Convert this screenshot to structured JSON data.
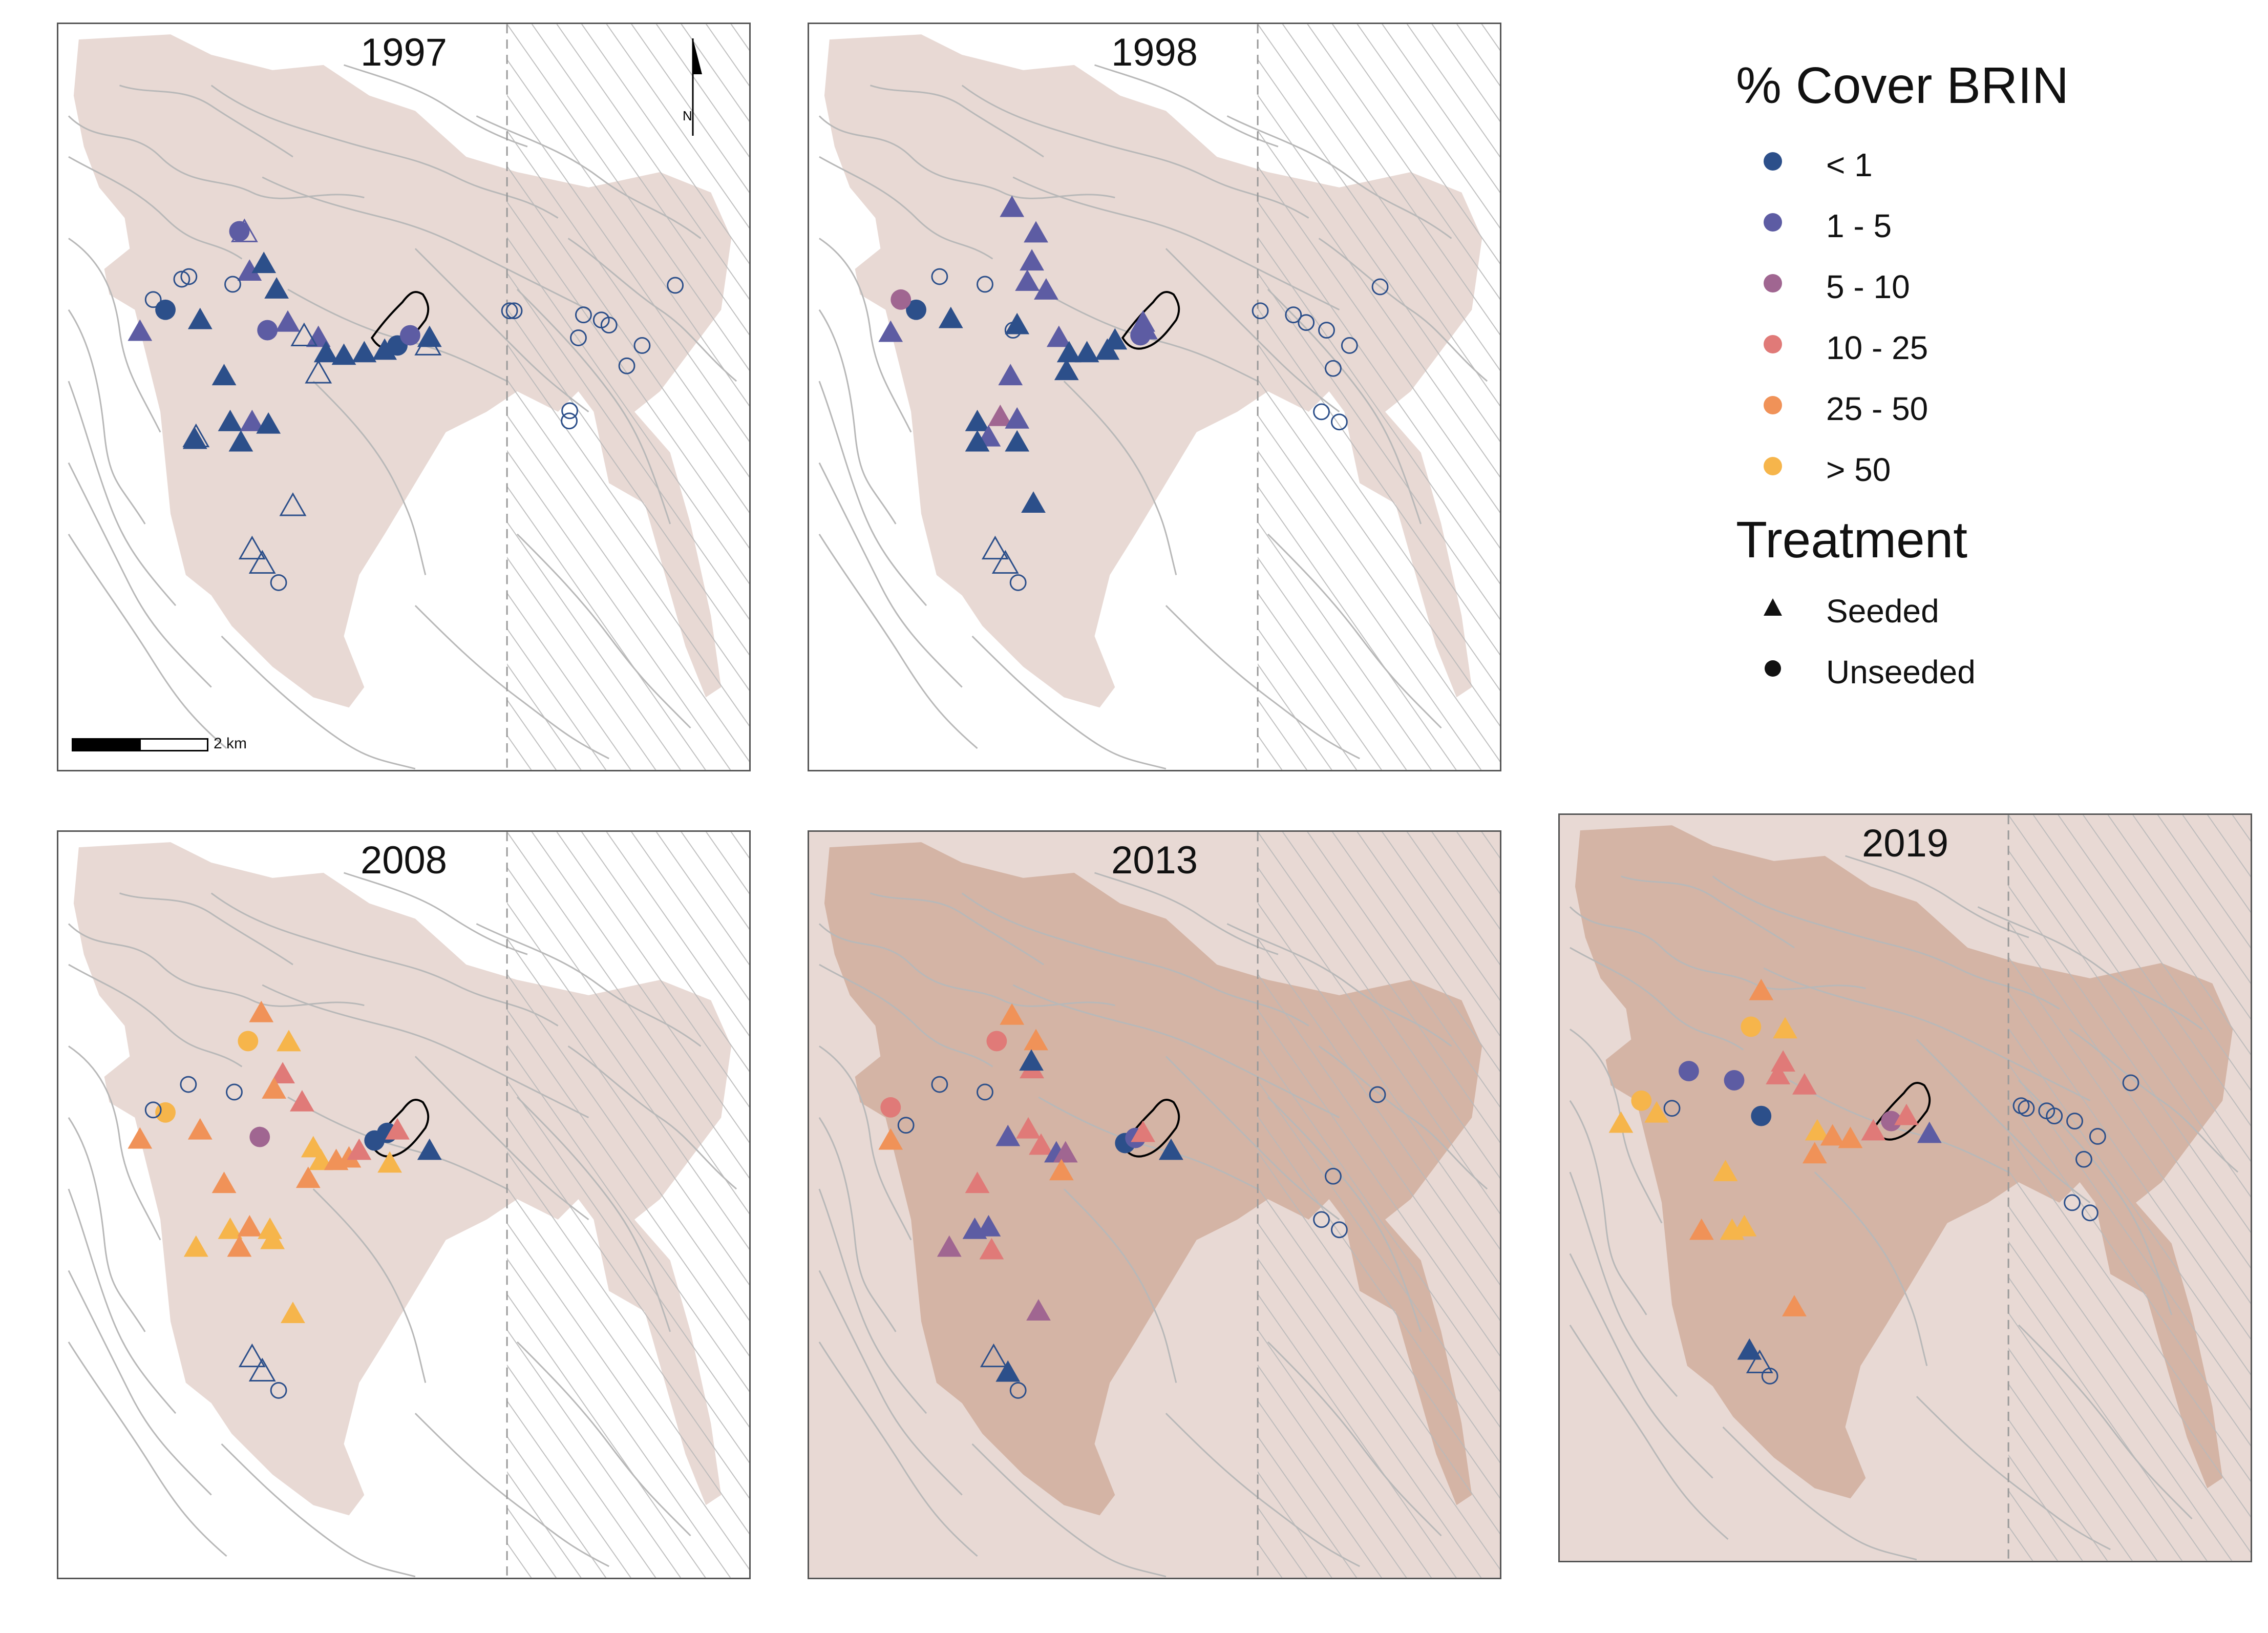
{
  "panels": [
    {
      "title": "1997",
      "shade": "light"
    },
    {
      "title": "1998",
      "shade": "light"
    },
    {
      "title": "2008",
      "shade": "light"
    },
    {
      "title": "2013",
      "shade": "dark"
    },
    {
      "title": "2019",
      "shade": "dark"
    }
  ],
  "north_arrow": {
    "label": "N"
  },
  "scalebar": {
    "label": "2 km"
  },
  "legend": {
    "cover_title": "% Cover BRIN",
    "cover_classes": [
      {
        "label": "< 1",
        "color": "#2C4F8A"
      },
      {
        "label": "1 - 5",
        "color": "#5D5CA3"
      },
      {
        "label": "5 - 10",
        "color": "#A06691"
      },
      {
        "label": "10 - 25",
        "color": "#E07A78"
      },
      {
        "label": "25 - 50",
        "color": "#F09258"
      },
      {
        "label": "> 50",
        "color": "#F6B54B"
      }
    ],
    "treatment_title": "Treatment",
    "treatments": [
      {
        "label": "Seeded",
        "shape": "triangle"
      },
      {
        "label": "Unseeded",
        "shape": "circle"
      }
    ]
  },
  "colors": {
    "burn_light": "#E8D9D4",
    "burn_dark": "#D4B4A5",
    "contour": "#B8B8B8",
    "hatch": "#B9B9B9"
  }
}
